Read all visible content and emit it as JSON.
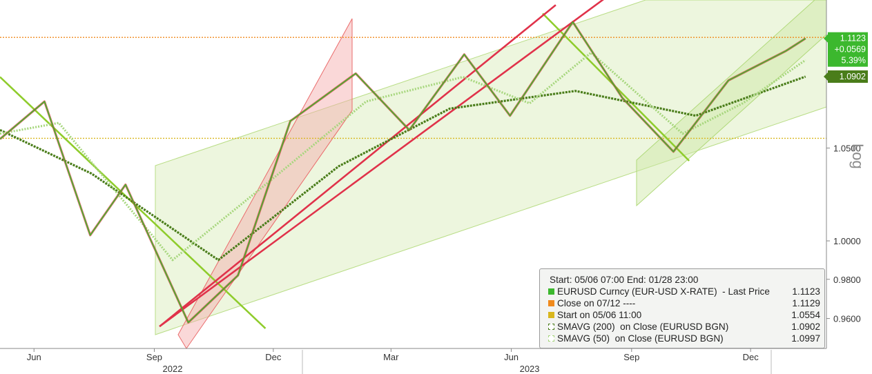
{
  "chart_data": {
    "type": "line",
    "title": "",
    "xlabel": "",
    "ylabel": "",
    "yaxis_scale": "log",
    "yaxis_scale_label": "Log",
    "ylim": [
      0.945,
      1.135
    ],
    "y_ticks": [
      0.96,
      0.98,
      1.0,
      1.05
    ],
    "y_tick_labels": [
      "0.9600",
      "0.9800",
      "1.0000",
      "1.0500"
    ],
    "x_ticks": [
      {
        "label": "Jun",
        "date": "2022-06-01"
      },
      {
        "label": "Sep",
        "date": "2022-09-01"
      },
      {
        "label": "Dec",
        "date": "2022-12-01"
      },
      {
        "label": "Mar",
        "date": "2023-03-01"
      },
      {
        "label": "Jun",
        "date": "2023-06-01"
      },
      {
        "label": "Sep",
        "date": "2023-09-01"
      },
      {
        "label": "Dec",
        "date": "2023-12-01"
      }
    ],
    "x_years": [
      {
        "label": "2022",
        "date": "2022-09-15"
      },
      {
        "label": "2023",
        "date": "2023-06-15"
      }
    ],
    "xlim": [
      "2022-05-06",
      "2024-01-28"
    ],
    "grid": false,
    "legend_position": "bottom-right",
    "legend_header": "Start: 05/06 07:00 End: 01/28 23:00",
    "series": [
      {
        "name": "EURUSD Curncy (EUR-USD X-RATE)  - Last Price",
        "color": "#3cb82e",
        "last": "1.1123",
        "x": [
          "2022-05-06",
          "2022-06-09",
          "2022-07-14",
          "2022-08-10",
          "2022-09-27",
          "2022-11-04",
          "2022-12-14",
          "2023-02-02",
          "2023-03-15",
          "2023-04-26",
          "2023-05-31",
          "2023-07-18",
          "2023-08-25",
          "2023-10-03",
          "2023-11-14",
          "2023-12-28",
          "2024-01-12"
        ],
        "y": [
          1.055,
          1.076,
          1.003,
          1.03,
          0.958,
          0.982,
          1.065,
          1.092,
          1.06,
          1.103,
          1.068,
          1.122,
          1.078,
          1.048,
          1.088,
          1.105,
          1.1123
        ]
      },
      {
        "name": "Close on 07/12 ----",
        "color": "#f08a1c",
        "last": "1.1129",
        "x": [
          "2022-05-06",
          "2024-01-28"
        ],
        "y": [
          1.1129,
          1.1129
        ]
      },
      {
        "name": "Start on 05/06 11:00",
        "color": "#d9b71e",
        "last": "1.0554",
        "x": [
          "2022-05-06",
          "2024-01-28"
        ],
        "y": [
          1.0554,
          1.0554
        ]
      },
      {
        "name": "SMAVG (200)  on Close (EURUSD BGN)",
        "color": "#4a7d1a",
        "last": "1.0902",
        "x": [
          "2022-05-06",
          "2022-07-15",
          "2022-10-20",
          "2023-01-20",
          "2023-04-15",
          "2023-07-20",
          "2023-10-20",
          "2024-01-12"
        ],
        "y": [
          1.06,
          1.036,
          0.99,
          1.04,
          1.072,
          1.082,
          1.068,
          1.0902
        ]
      },
      {
        "name": "SMAVG (50)  on Close (EURUSD BGN)",
        "color": "#a6d67c",
        "last": "1.0997",
        "x": [
          "2022-05-06",
          "2022-06-20",
          "2022-09-15",
          "2022-11-25",
          "2023-02-10",
          "2023-04-25",
          "2023-06-15",
          "2023-08-01",
          "2023-10-10",
          "2023-11-25",
          "2024-01-12"
        ],
        "y": [
          1.058,
          1.064,
          0.99,
          1.03,
          1.076,
          1.09,
          1.075,
          1.104,
          1.058,
          1.075,
          1.0997
        ]
      }
    ],
    "value_tags": [
      {
        "lines": [
          "1.1123",
          "+0.0569",
          "5.39%"
        ],
        "color": "#3cb82e",
        "y": 1.1123
      },
      {
        "lines": [
          "1.0902"
        ],
        "color": "#4a7d1a",
        "y": 1.0902
      }
    ],
    "trendlines": [
      {
        "color": "#8fcc2c",
        "x": [
          "2022-05-06",
          "2022-11-25"
        ],
        "y": [
          1.09,
          0.955
        ]
      },
      {
        "color": "#8fcc2c",
        "x": [
          "2023-06-25",
          "2023-10-15"
        ],
        "y": [
          1.127,
          1.043
        ]
      },
      {
        "color": "#e0324a",
        "x": [
          "2022-09-05",
          "2023-07-05"
        ],
        "y": [
          0.956,
          1.132
        ]
      },
      {
        "color": "#e0324a",
        "x": [
          "2022-09-05",
          "2023-08-15"
        ],
        "y": [
          0.956,
          1.138
        ]
      }
    ]
  }
}
